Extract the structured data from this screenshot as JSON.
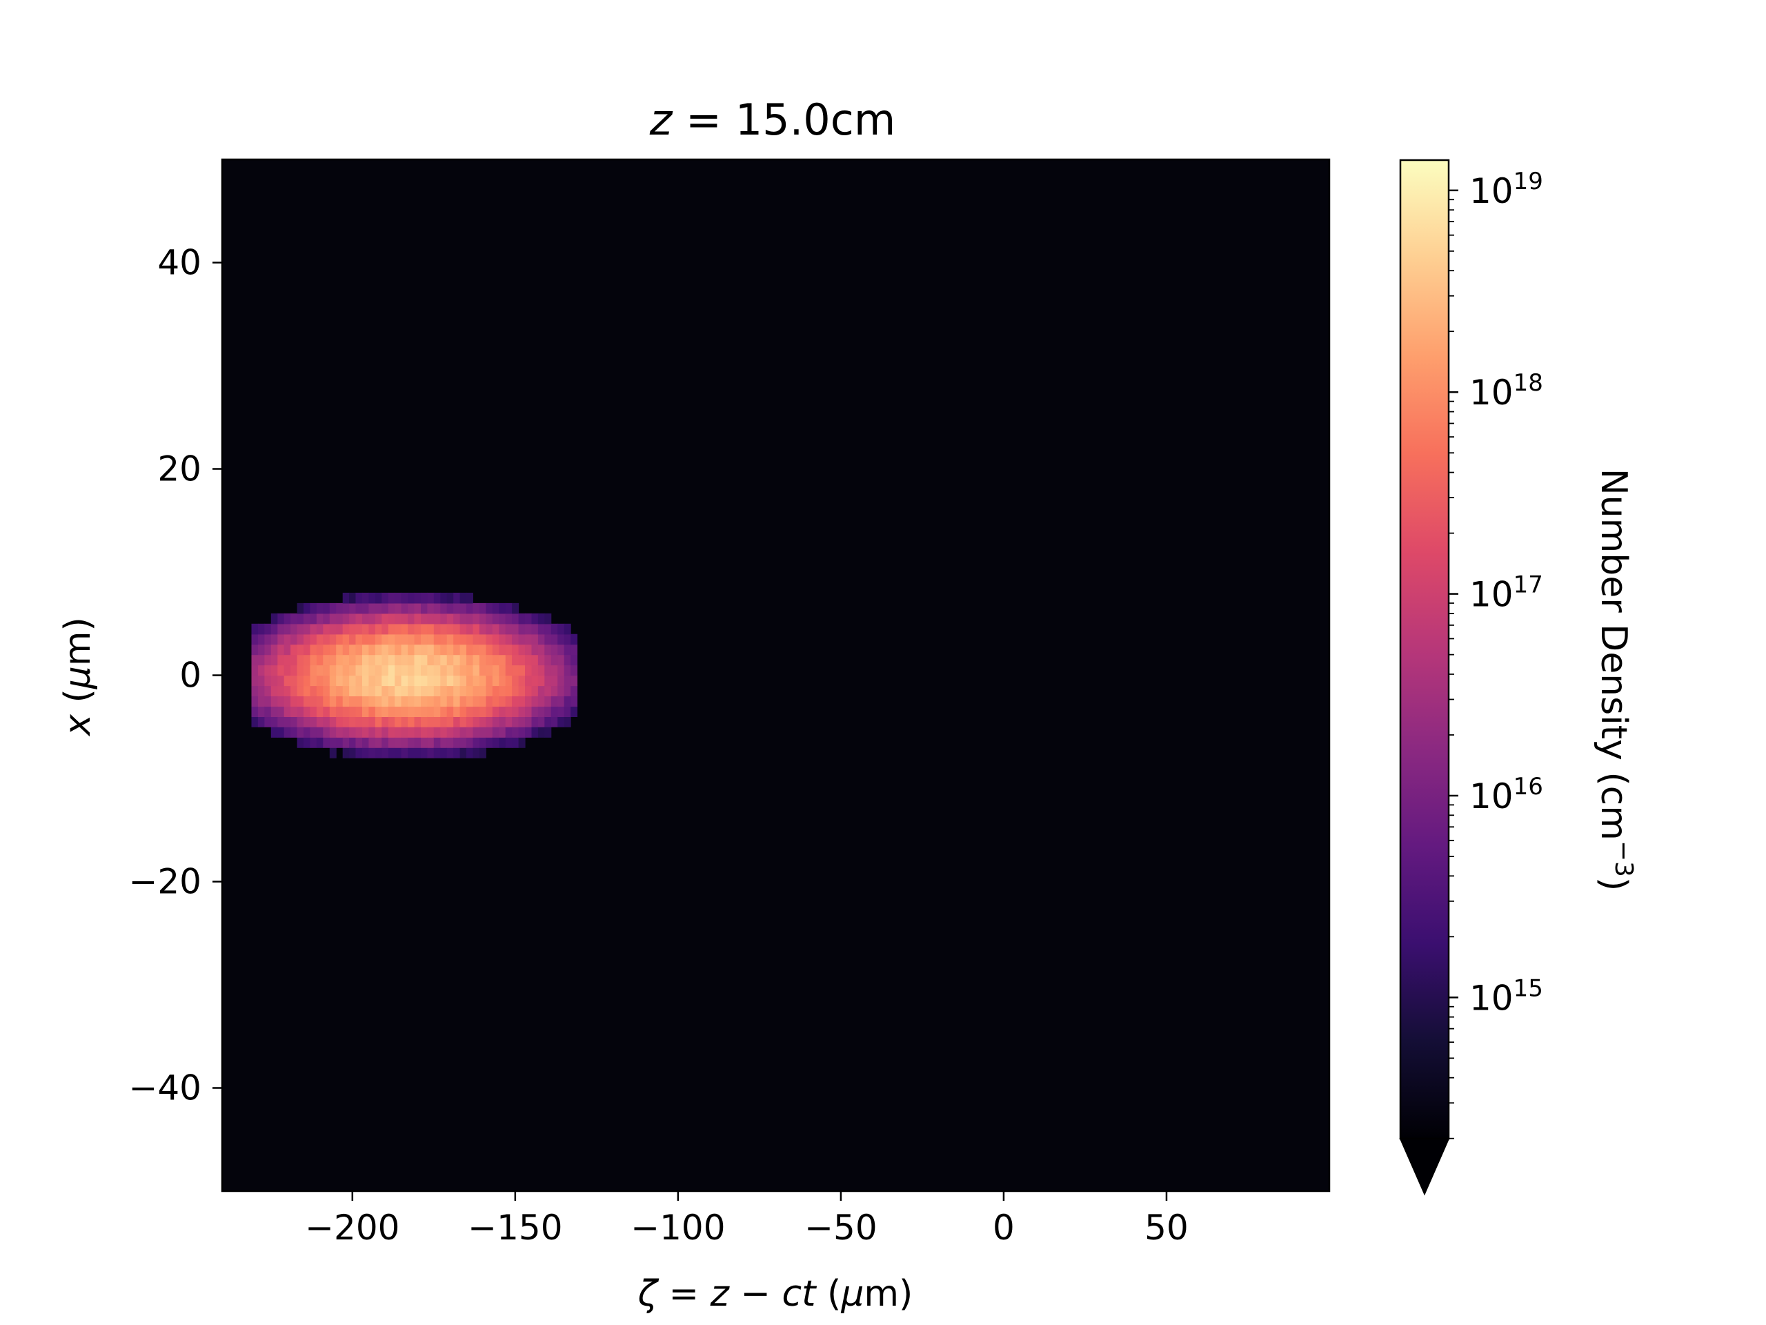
{
  "chart_data": {
    "type": "heatmap",
    "title": {
      "variable": "z",
      "equals": " = ",
      "value": "15.0cm"
    },
    "xlabel": {
      "sym": "ζ",
      "mid": " = ",
      "z": "z",
      "minus": " − ",
      "ct": "ct",
      "units_open": " (",
      "mu": "μ",
      "units_close": "m)"
    },
    "ylabel": {
      "sym": "x",
      "units_open": " (",
      "mu": "μ",
      "units_close": "m)"
    },
    "xlim": [
      -240,
      100
    ],
    "ylim": [
      -50,
      50
    ],
    "xticks": [
      -200,
      -150,
      -100,
      -50,
      0,
      50
    ],
    "xtick_labels": [
      "−200",
      "−150",
      "−100",
      "−50",
      "0",
      "50"
    ],
    "yticks": [
      -40,
      -20,
      0,
      20,
      40
    ],
    "ytick_labels": [
      "−40",
      "−20",
      "0",
      "20",
      "40"
    ],
    "background_color": "#04040c",
    "colormap": "magma",
    "colorbar": {
      "label": "Number Density (cm",
      "label_exp": "−3",
      "label_close": ")",
      "scale": "log",
      "vmin_log10": 14.3,
      "vmax_log10": 19.15,
      "extend": "min",
      "major_ticks": [
        15,
        16,
        17,
        18,
        19
      ],
      "tick_base": "10",
      "tick_exponents": [
        "15",
        "16",
        "17",
        "18",
        "19"
      ]
    },
    "bunch": {
      "center_zeta": -183,
      "center_x": 0,
      "peak_log10": 18.7,
      "sigma_zeta": 27,
      "sigma_x": 3.6,
      "zeta_min": -231,
      "zeta_max": -131,
      "x_min": -11,
      "x_max": 10
    }
  }
}
